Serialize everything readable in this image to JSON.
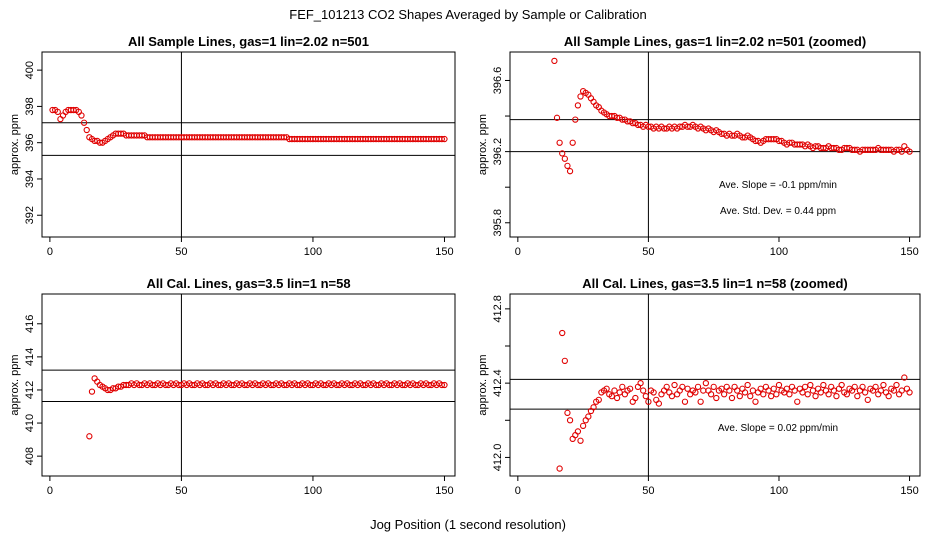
{
  "page": {
    "title": "FEF_101213  CO2 Shapes Averaged by Sample or Calibration",
    "xlabel": "Jog Position (1 second resolution)"
  },
  "colors": {
    "points": "#e00000",
    "axes": "#000000"
  },
  "chart_data": [
    {
      "id": "p1",
      "type": "scatter",
      "title": "All Sample Lines, gas=1 lin=2.02 n=501",
      "ylabel": "approx. ppm",
      "xlim": [
        -3,
        154
      ],
      "ylim": [
        390.8,
        401.0
      ],
      "xticks": [
        0,
        50,
        100,
        150
      ],
      "yticks": [
        392,
        394,
        396,
        398,
        400
      ],
      "vline": 50,
      "hlines": [
        397.1,
        395.3
      ],
      "annotations": [],
      "series": [
        {
          "x_start": 1,
          "x_end": 150,
          "values": [
            397.8,
            397.8,
            397.7,
            397.3,
            397.5,
            397.7,
            397.8,
            397.8,
            397.8,
            397.8,
            397.7,
            397.5,
            397.1,
            396.7,
            396.3,
            396.2,
            396.1,
            396.1,
            396.0,
            396.0,
            396.1,
            396.2,
            396.3,
            396.4,
            396.5,
            396.5,
            396.5,
            396.5,
            396.4,
            396.4,
            396.4,
            396.4,
            396.4,
            396.4,
            396.4,
            396.4,
            396.3,
            396.3,
            396.3,
            396.3,
            396.3,
            396.3,
            396.3,
            396.3,
            396.3,
            396.3,
            396.3,
            396.3,
            396.3,
            396.3,
            396.3,
            396.3,
            396.3,
            396.3,
            396.3,
            396.3,
            396.3,
            396.3,
            396.3,
            396.3,
            396.3,
            396.3,
            396.3,
            396.3,
            396.3,
            396.3,
            396.3,
            396.3,
            396.3,
            396.3,
            396.3,
            396.3,
            396.3,
            396.3,
            396.3,
            396.3,
            396.3,
            396.3,
            396.3,
            396.3,
            396.3,
            396.3,
            396.3,
            396.3,
            396.3,
            396.3,
            396.3,
            396.3,
            396.3,
            396.3,
            396.2,
            396.2,
            396.2,
            396.2,
            396.2,
            396.2,
            396.2,
            396.2,
            396.2,
            396.2,
            396.2,
            396.2,
            396.2,
            396.2,
            396.2,
            396.2,
            396.2,
            396.2,
            396.2,
            396.2,
            396.2,
            396.2,
            396.2,
            396.2,
            396.2,
            396.2,
            396.2,
            396.2,
            396.2,
            396.2,
            396.2,
            396.2,
            396.2,
            396.2,
            396.2,
            396.2,
            396.2,
            396.2,
            396.2,
            396.2,
            396.2,
            396.2,
            396.2,
            396.2,
            396.2,
            396.2,
            396.2,
            396.2,
            396.2,
            396.2,
            396.2,
            396.2,
            396.2,
            396.2,
            396.2,
            396.2,
            396.2,
            396.2,
            396.2,
            396.2
          ]
        }
      ]
    },
    {
      "id": "p2",
      "type": "scatter",
      "title": "All Sample Lines, gas=1 lin=2.02 n=501 (zoomed)",
      "ylabel": "approx. ppm",
      "xlim": [
        -3,
        154
      ],
      "ylim": [
        395.72,
        396.76
      ],
      "xticks": [
        0,
        50,
        100,
        150
      ],
      "yticks": [
        395.8,
        396.2,
        396.6
      ],
      "yticks_minor": [
        396.0,
        396.4
      ],
      "vline": 50,
      "hlines": [
        396.38,
        396.2
      ],
      "annotations": [
        "Ave. Slope =  -0.1  ppm/min",
        "Ave. Std. Dev. =  0.44  ppm"
      ],
      "series": [
        {
          "x_start": 14,
          "x_end": 150,
          "values": [
            396.71,
            396.39,
            396.25,
            396.19,
            396.16,
            396.12,
            396.09,
            396.25,
            396.38,
            396.46,
            396.51,
            396.54,
            396.53,
            396.52,
            396.5,
            396.48,
            396.46,
            396.45,
            396.43,
            396.42,
            396.41,
            396.4,
            396.4,
            396.4,
            396.39,
            396.39,
            396.38,
            396.38,
            396.37,
            396.37,
            396.36,
            396.36,
            396.35,
            396.35,
            396.34,
            396.35,
            396.34,
            396.34,
            396.33,
            396.34,
            396.33,
            396.34,
            396.33,
            396.33,
            396.34,
            396.33,
            396.34,
            396.33,
            396.34,
            396.34,
            396.35,
            396.34,
            396.34,
            396.35,
            396.34,
            396.33,
            396.34,
            396.33,
            396.32,
            396.33,
            396.32,
            396.31,
            396.32,
            396.31,
            396.3,
            396.3,
            396.29,
            396.3,
            396.29,
            396.29,
            396.3,
            396.29,
            396.28,
            396.28,
            396.29,
            396.28,
            396.27,
            396.26,
            396.26,
            396.25,
            396.26,
            396.27,
            396.27,
            396.27,
            396.27,
            396.27,
            396.26,
            396.26,
            396.25,
            396.24,
            396.25,
            396.25,
            396.24,
            396.24,
            396.24,
            396.24,
            396.23,
            396.24,
            396.23,
            396.22,
            396.23,
            396.23,
            396.22,
            396.22,
            396.22,
            396.23,
            396.22,
            396.22,
            396.22,
            396.21,
            396.21,
            396.22,
            396.22,
            396.22,
            396.21,
            396.21,
            396.21,
            396.2,
            396.21,
            396.21,
            396.21,
            396.21,
            396.21,
            396.21,
            396.22,
            396.21,
            396.21,
            396.21,
            396.21,
            396.21,
            396.2,
            396.21,
            396.21,
            396.2,
            396.23,
            396.21,
            396.2
          ]
        }
      ]
    },
    {
      "id": "p3",
      "type": "scatter",
      "title": "All Cal. Lines, gas=3.5 lin=1 n=58",
      "ylabel": "approx. ppm",
      "xlim": [
        -3,
        154
      ],
      "ylim": [
        406.8,
        417.8
      ],
      "xticks": [
        0,
        50,
        100,
        150
      ],
      "yticks": [
        408,
        410,
        412,
        414,
        416
      ],
      "vline": 50,
      "hlines": [
        413.2,
        411.3
      ],
      "annotations": [],
      "series": [
        {
          "x_start": 15,
          "x_end": 150,
          "values": [
            409.2,
            411.9,
            412.7,
            412.5,
            412.3,
            412.2,
            412.1,
            412.0,
            412.0,
            412.1,
            412.1,
            412.2,
            412.2,
            412.3,
            412.3,
            412.3,
            412.4,
            412.3,
            412.4,
            412.3,
            412.3,
            412.4,
            412.3,
            412.4,
            412.3,
            412.3,
            412.4,
            412.3,
            412.4,
            412.3,
            412.3,
            412.4,
            412.3,
            412.4,
            412.3,
            412.3,
            412.4,
            412.3,
            412.4,
            412.3,
            412.3,
            412.4,
            412.3,
            412.4,
            412.3,
            412.3,
            412.4,
            412.3,
            412.4,
            412.3,
            412.3,
            412.4,
            412.3,
            412.4,
            412.3,
            412.3,
            412.4,
            412.3,
            412.4,
            412.3,
            412.3,
            412.4,
            412.3,
            412.4,
            412.3,
            412.3,
            412.4,
            412.3,
            412.4,
            412.3,
            412.3,
            412.4,
            412.3,
            412.4,
            412.3,
            412.3,
            412.4,
            412.3,
            412.4,
            412.3,
            412.3,
            412.4,
            412.3,
            412.4,
            412.3,
            412.3,
            412.4,
            412.3,
            412.4,
            412.3,
            412.3,
            412.4,
            412.3,
            412.4,
            412.3,
            412.3,
            412.4,
            412.3,
            412.4,
            412.3,
            412.3,
            412.4,
            412.3,
            412.4,
            412.3,
            412.3,
            412.4,
            412.3,
            412.4,
            412.3,
            412.3,
            412.4,
            412.3,
            412.4,
            412.3,
            412.3,
            412.4,
            412.3,
            412.4,
            412.3,
            412.3,
            412.4,
            412.3,
            412.4,
            412.3,
            412.3,
            412.4,
            412.3,
            412.4,
            412.3,
            412.3,
            412.4,
            412.3,
            412.4,
            412.3,
            412.3
          ]
        }
      ]
    },
    {
      "id": "p4",
      "type": "scatter",
      "title": "All Cal. Lines, gas=3.5 lin=1 n=58 (zoomed)",
      "ylabel": "approx. ppm",
      "xlim": [
        -3,
        154
      ],
      "ylim": [
        411.9,
        412.88
      ],
      "xticks": [
        0,
        50,
        100,
        150
      ],
      "yticks": [
        412.0,
        412.4,
        412.8
      ],
      "yticks_minor": [
        412.2,
        412.6
      ],
      "vline": 50,
      "hlines": [
        412.42,
        412.26
      ],
      "annotations": [
        "Ave. Slope =  0.02  ppm/min"
      ],
      "series": [
        {
          "x_start": 16,
          "x_end": 150,
          "values": [
            411.94,
            412.67,
            412.52,
            412.24,
            412.2,
            412.1,
            412.12,
            412.14,
            412.09,
            412.17,
            412.2,
            412.22,
            412.25,
            412.27,
            412.3,
            412.31,
            412.35,
            412.36,
            412.37,
            412.34,
            412.33,
            412.36,
            412.32,
            412.35,
            412.38,
            412.34,
            412.36,
            412.37,
            412.3,
            412.32,
            412.38,
            412.4,
            412.36,
            412.33,
            412.3,
            412.36,
            412.35,
            412.31,
            412.29,
            412.34,
            412.36,
            412.38,
            412.35,
            412.33,
            412.39,
            412.34,
            412.36,
            412.38,
            412.3,
            412.37,
            412.34,
            412.36,
            412.35,
            412.38,
            412.3,
            412.36,
            412.4,
            412.36,
            412.34,
            412.38,
            412.32,
            412.36,
            412.37,
            412.34,
            412.38,
            412.36,
            412.32,
            412.38,
            412.36,
            412.33,
            412.37,
            412.35,
            412.39,
            412.33,
            412.36,
            412.3,
            412.35,
            412.37,
            412.34,
            412.38,
            412.36,
            412.33,
            412.37,
            412.34,
            412.39,
            412.36,
            412.35,
            412.37,
            412.34,
            412.38,
            412.36,
            412.3,
            412.37,
            412.35,
            412.38,
            412.34,
            412.39,
            412.36,
            412.33,
            412.37,
            412.35,
            412.39,
            412.36,
            412.34,
            412.38,
            412.36,
            412.33,
            412.37,
            412.39,
            412.35,
            412.34,
            412.37,
            412.36,
            412.38,
            412.33,
            412.36,
            412.38,
            412.35,
            412.31,
            412.37,
            412.36,
            412.38,
            412.34,
            412.36,
            412.39,
            412.35,
            412.33,
            412.37,
            412.36,
            412.39,
            412.34,
            412.36,
            412.43,
            412.37,
            412.35
          ]
        }
      ]
    }
  ]
}
